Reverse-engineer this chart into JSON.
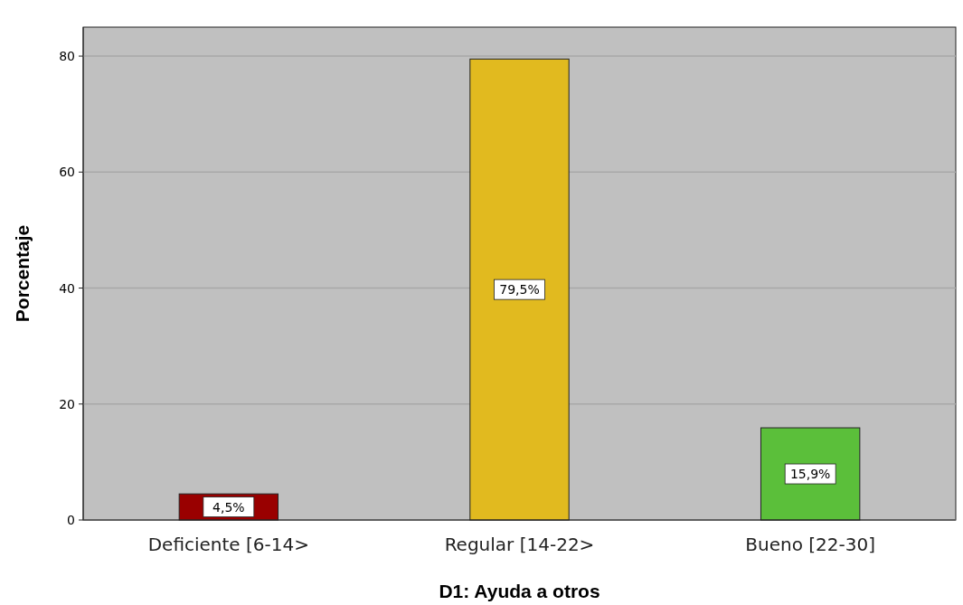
{
  "chart_data": {
    "type": "bar",
    "xlabel": "D1: Ayuda a otros",
    "ylabel": "Porcentaje",
    "categories": [
      "Deficiente [6-14>",
      "Regular [14-22>",
      "Bueno [22-30]"
    ],
    "values": [
      4.5,
      79.5,
      15.9
    ],
    "colors": [
      "#990000",
      "#e1ba1f",
      "#5bbf3a"
    ],
    "value_labels": [
      "4,5%",
      "79,5%",
      "15,9%"
    ],
    "ylim": [
      0,
      85
    ],
    "yticks": [
      0,
      20,
      40,
      60,
      80
    ],
    "grid": "y"
  }
}
